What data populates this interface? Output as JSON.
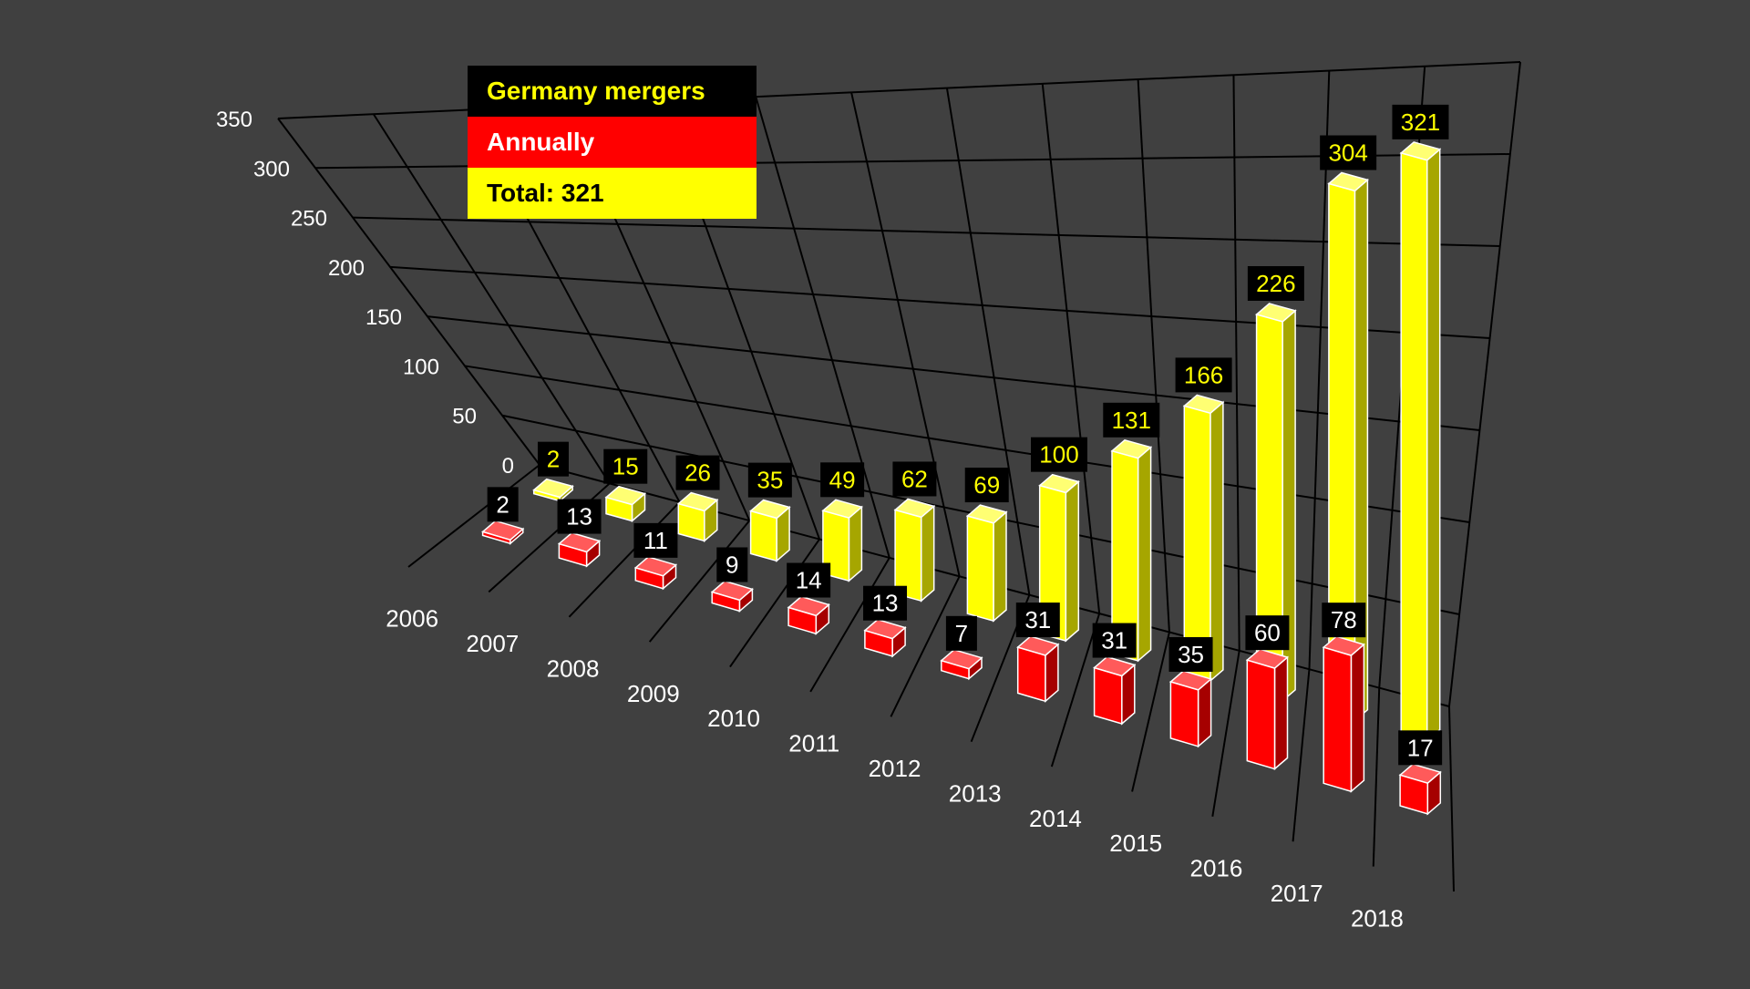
{
  "legend": {
    "title": "Germany mergers",
    "annual_label": "Annually",
    "total_label": "Total: 321"
  },
  "colors": {
    "background": "#404040",
    "annual": "#ff0000",
    "annual_side": "#a60000",
    "annual_top": "#ff5a5a",
    "total": "#ffff00",
    "total_side": "#a6a600",
    "total_top": "#ffff73",
    "label_box": "#000000",
    "grid": "#000000",
    "axis_text": "#ffffff"
  },
  "chart_data": {
    "type": "bar",
    "style": "3d-perspective",
    "categories": [
      "2006",
      "2007",
      "2008",
      "2009",
      "2010",
      "2011",
      "2012",
      "2013",
      "2014",
      "2015",
      "2016",
      "2017",
      "2018"
    ],
    "series": [
      {
        "name": "Annually",
        "values": [
          2,
          13,
          11,
          9,
          14,
          13,
          7,
          31,
          31,
          35,
          60,
          78,
          17
        ]
      },
      {
        "name": "Total: 321",
        "values": [
          2,
          15,
          26,
          35,
          49,
          62,
          69,
          100,
          131,
          166,
          226,
          304,
          321
        ]
      }
    ],
    "yticks": [
      "0",
      "50",
      "100",
      "150",
      "200",
      "250",
      "300",
      "350"
    ],
    "ylim": [
      0,
      350
    ],
    "title": "Germany mergers",
    "xlabel": "",
    "ylabel": "",
    "grid": true,
    "data_labels": true,
    "legend_position": "top-left"
  }
}
